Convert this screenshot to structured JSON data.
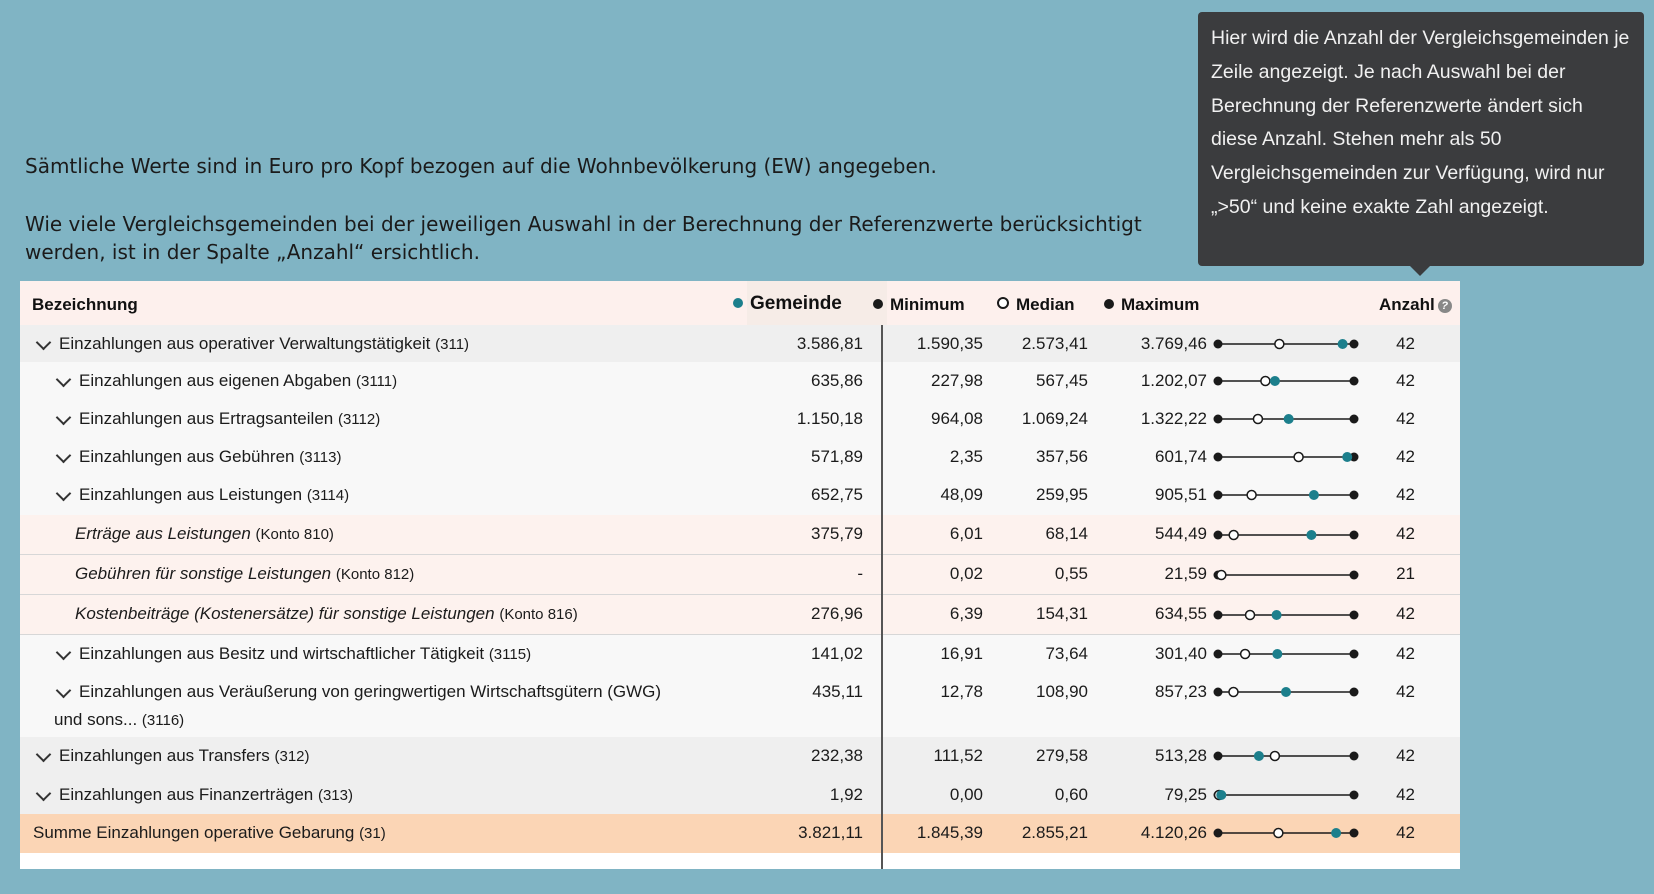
{
  "intro": {
    "line1": "Sämtliche Werte sind in Euro pro Kopf bezogen auf die Wohnbevölkerung (EW) angegeben.",
    "line2": "Wie viele Vergleichsgemeinden bei der jeweiligen Auswahl in der Berechnung der Referenzwerte berücksichtigt werden, ist in der Spalte „Anzahl“ ersichtlich."
  },
  "tooltip": "Hier wird die Anzahl der Vergleichsgemeinden je Zeile angezeigt. Je nach Auswahl bei der Berechnung der Referenzwerte ändert sich diese Anzahl. Stehen mehr als 50 Vergleichsgemeinden zur Verfügung, wird nur „>50“ und keine exakte Zahl angezeigt.",
  "colors": {
    "gemeinde": "#1c7f8c",
    "reference": "#1a1a1a",
    "median_fill": "#ffffff"
  },
  "table": {
    "headers": {
      "bezeichnung": "Bezeichnung",
      "gemeinde": "Gemeinde",
      "minimum": "Minimum",
      "median": "Median",
      "maximum": "Maximum",
      "anzahl": "Anzahl"
    },
    "rows": [
      {
        "label": "Einzahlungen aus operativer Verwaltungstätigkeit",
        "code": "(311)",
        "gemeinde": "3.586,81",
        "minimum": "1.590,35",
        "median": "2.573,41",
        "maximum": "3.769,46",
        "anzahl": "42"
      },
      {
        "label": "Einzahlungen aus eigenen Abgaben",
        "code": "(3111)",
        "gemeinde": "635,86",
        "minimum": "227,98",
        "median": "567,45",
        "maximum": "1.202,07",
        "anzahl": "42"
      },
      {
        "label": "Einzahlungen aus Ertragsanteilen",
        "code": "(3112)",
        "gemeinde": "1.150,18",
        "minimum": "964,08",
        "median": "1.069,24",
        "maximum": "1.322,22",
        "anzahl": "42"
      },
      {
        "label": "Einzahlungen aus Gebühren",
        "code": "(3113)",
        "gemeinde": "571,89",
        "minimum": "2,35",
        "median": "357,56",
        "maximum": "601,74",
        "anzahl": "42"
      },
      {
        "label": "Einzahlungen aus Leistungen",
        "code": "(3114)",
        "gemeinde": "652,75",
        "minimum": "48,09",
        "median": "259,95",
        "maximum": "905,51",
        "anzahl": "42"
      },
      {
        "label": "Erträge aus Leistungen",
        "code": "(Konto 810)",
        "gemeinde": "375,79",
        "minimum": "6,01",
        "median": "68,14",
        "maximum": "544,49",
        "anzahl": "42"
      },
      {
        "label": "Gebühren für sonstige Leistungen",
        "code": "(Konto 812)",
        "gemeinde": "-",
        "minimum": "0,02",
        "median": "0,55",
        "maximum": "21,59",
        "anzahl": "21"
      },
      {
        "label": "Kostenbeiträge (Kostenersätze) für sonstige Leistungen",
        "code": "(Konto 816)",
        "gemeinde": "276,96",
        "minimum": "6,39",
        "median": "154,31",
        "maximum": "634,55",
        "anzahl": "42"
      },
      {
        "label": "Einzahlungen aus Besitz und wirtschaftlicher Tätigkeit",
        "code": "(3115)",
        "gemeinde": "141,02",
        "minimum": "16,91",
        "median": "73,64",
        "maximum": "301,40",
        "anzahl": "42"
      },
      {
        "label": "Einzahlungen aus Veräußerung von geringwertigen Wirtschaftsgütern (GWG)",
        "label2": "und sons...",
        "code": "(3116)",
        "gemeinde": "435,11",
        "minimum": "12,78",
        "median": "108,90",
        "maximum": "857,23",
        "anzahl": "42"
      },
      {
        "label": "Einzahlungen aus Transfers",
        "code": "(312)",
        "gemeinde": "232,38",
        "minimum": "111,52",
        "median": "279,58",
        "maximum": "513,28",
        "anzahl": "42"
      },
      {
        "label": "Einzahlungen aus Finanzerträgen",
        "code": "(313)",
        "gemeinde": "1,92",
        "minimum": "0,00",
        "median": "0,60",
        "maximum": "79,25",
        "anzahl": "42"
      },
      {
        "label": "Summe Einzahlungen operative Gebarung",
        "code": "(31)",
        "gemeinde": "3.821,11",
        "minimum": "1.845,39",
        "median": "2.855,21",
        "maximum": "4.120,26",
        "anzahl": "42"
      }
    ]
  }
}
